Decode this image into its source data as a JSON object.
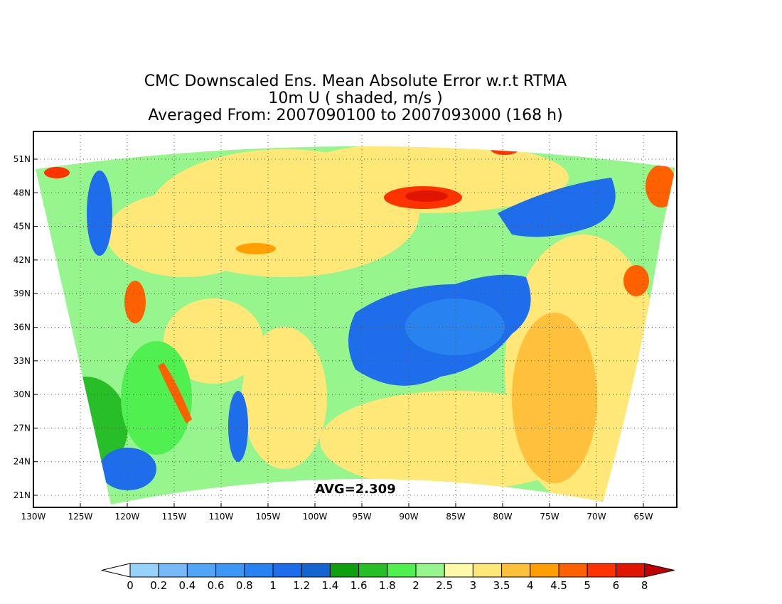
{
  "title_lines": [
    "CMC Downscaled Ens. Mean Absolute Error w.r.t RTMA",
    "10m U ( shaded, m/s )",
    "Averaged From: 2007090100 to 2007093000 (168 h)"
  ],
  "lat_labels": [
    "51N",
    "48N",
    "45N",
    "42N",
    "39N",
    "36N",
    "33N",
    "30N",
    "27N",
    "24N",
    "21N"
  ],
  "lon_labels": [
    "130W",
    "125W",
    "120W",
    "115W",
    "110W",
    "105W",
    "100W",
    "95W",
    "90W",
    "85W",
    "80W",
    "75W",
    "70W",
    "65W"
  ],
  "average_label": "AVG=2.309",
  "colorbar": {
    "labels": [
      "0",
      "0.2",
      "0.4",
      "0.6",
      "0.8",
      "1",
      "1.2",
      "1.4",
      "1.6",
      "1.8",
      "2",
      "2.5",
      "3",
      "3.5",
      "4",
      "4.5",
      "5",
      "6",
      "8"
    ],
    "colors": [
      "#96d2fa",
      "#78b9fa",
      "#50a5f5",
      "#3c97f5",
      "#2882f0",
      "#1e6eeb",
      "#1464d2",
      "#0fa00f",
      "#28be28",
      "#50f050",
      "#96f58c",
      "#fffaaa",
      "#ffe878",
      "#ffc03c",
      "#ffa000",
      "#ff6000",
      "#ff3200",
      "#e11400",
      "#c00000"
    ],
    "under_color": "#ffffff",
    "over_color": "#a50000"
  },
  "map": {
    "ocean_color": "#ffffff",
    "grid": true,
    "grid_style": "dotted"
  }
}
